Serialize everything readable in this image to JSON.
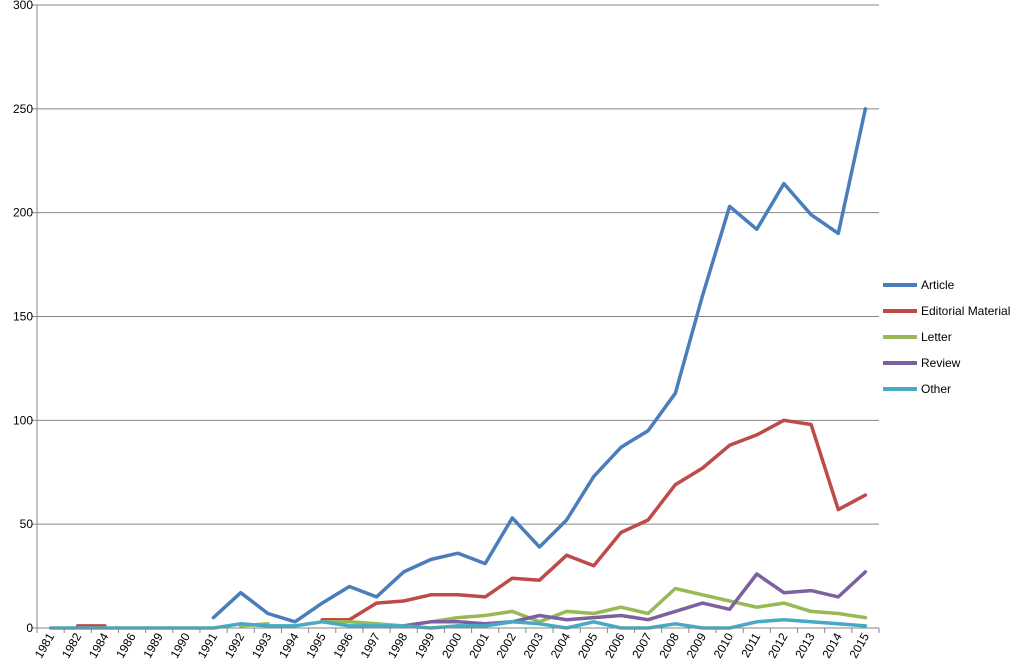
{
  "chart_data": {
    "type": "line",
    "title": "",
    "xlabel": "",
    "ylabel": "",
    "ylim": [
      0,
      300
    ],
    "yticks": [
      0,
      50,
      100,
      150,
      200,
      250,
      300
    ],
    "grid": true,
    "legend_position": "right",
    "categories": [
      "1981",
      "1982",
      "1984",
      "1986",
      "1989",
      "1990",
      "1991",
      "1992",
      "1993",
      "1994",
      "1995",
      "1996",
      "1997",
      "1998",
      "1999",
      "2000",
      "2001",
      "2002",
      "2003",
      "2004",
      "2005",
      "2006",
      "2007",
      "2008",
      "2009",
      "2010",
      "2011",
      "2012",
      "2013",
      "2014",
      "2015"
    ],
    "series": [
      {
        "name": "Article",
        "color": "#4a7ebb",
        "values": [
          null,
          null,
          null,
          null,
          null,
          null,
          5,
          17,
          7,
          3,
          12,
          20,
          15,
          27,
          33,
          36,
          31,
          53,
          39,
          52,
          73,
          87,
          95,
          113,
          160,
          203,
          192,
          214,
          199,
          190,
          250
        ]
      },
      {
        "name": "Editorial Material",
        "color": "#be4b48",
        "values": [
          null,
          1,
          1,
          null,
          null,
          null,
          null,
          null,
          null,
          null,
          4,
          4,
          12,
          13,
          16,
          16,
          15,
          24,
          23,
          35,
          30,
          46,
          52,
          69,
          77,
          88,
          93,
          100,
          98,
          57,
          64
        ]
      },
      {
        "name": "Letter",
        "color": "#98b954",
        "values": [
          null,
          null,
          null,
          null,
          null,
          null,
          null,
          1,
          2,
          null,
          3,
          3,
          2,
          1,
          3,
          5,
          6,
          8,
          3,
          8,
          7,
          10,
          7,
          19,
          16,
          13,
          10,
          12,
          8,
          7,
          5
        ]
      },
      {
        "name": "Review",
        "color": "#7d60a0",
        "values": [
          null,
          null,
          null,
          null,
          null,
          null,
          null,
          null,
          null,
          null,
          null,
          null,
          null,
          1,
          3,
          3,
          2,
          3,
          6,
          4,
          5,
          6,
          4,
          8,
          12,
          9,
          26,
          17,
          18,
          15,
          27
        ]
      },
      {
        "name": "Other",
        "color": "#46aac5",
        "values": [
          0,
          0,
          0,
          0,
          0,
          0,
          0,
          2,
          1,
          1,
          3,
          1,
          1,
          1,
          0,
          1,
          1,
          3,
          2,
          0,
          3,
          0,
          0,
          2,
          0,
          0,
          3,
          4,
          3,
          2,
          1
        ]
      }
    ]
  }
}
